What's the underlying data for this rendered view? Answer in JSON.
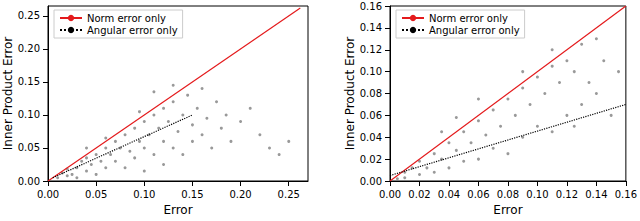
{
  "chart_data": [
    {
      "type": "scatter",
      "x_label": "Error",
      "y_label": "Inner Product Error",
      "legend": "upper left",
      "grid": false,
      "xlim": [
        0,
        0.27
      ],
      "ylim": [
        0,
        0.265
      ],
      "xticks": [
        {
          "value": 0,
          "label": "0.00"
        },
        {
          "value": 0.05,
          "label": "0.05"
        },
        {
          "value": 0.1,
          "label": "0.10"
        },
        {
          "value": 0.15,
          "label": "0.15"
        },
        {
          "value": 0.2,
          "label": "0.20"
        },
        {
          "value": 0.25,
          "label": "0.25"
        }
      ],
      "yticks": [
        {
          "value": 0,
          "label": "0.00"
        },
        {
          "value": 0.05,
          "label": "0.05"
        },
        {
          "value": 0.1,
          "label": "0.10"
        },
        {
          "value": 0.15,
          "label": "0.15"
        },
        {
          "value": 0.2,
          "label": "0.20"
        },
        {
          "value": 0.25,
          "label": "0.25"
        }
      ],
      "series": [
        {
          "type": "scatter",
          "color": "#808080",
          "marker": "circle",
          "x": [
            0.01,
            0.015,
            0.02,
            0.02,
            0.025,
            0.03,
            0.03,
            0.035,
            0.04,
            0.04,
            0.045,
            0.05,
            0.05,
            0.055,
            0.06,
            0.06,
            0.065,
            0.07,
            0.07,
            0.075,
            0.08,
            0.08,
            0.085,
            0.09,
            0.09,
            0.095,
            0.1,
            0.1,
            0.1,
            0.105,
            0.11,
            0.11,
            0.115,
            0.12,
            0.12,
            0.12,
            0.125,
            0.13,
            0.13,
            0.135,
            0.14,
            0.14,
            0.145,
            0.15,
            0.15,
            0.155,
            0.16,
            0.16,
            0.165,
            0.17,
            0.175,
            0.18,
            0.185,
            0.19,
            0.2,
            0.21,
            0.22,
            0.23,
            0.24,
            0.25,
            0.11,
            0.095,
            0.13,
            0.06,
            0.04
          ],
          "y": [
            0.005,
            0.012,
            0.008,
            0.018,
            0.01,
            0.02,
            0.005,
            0.03,
            0.015,
            0.035,
            0.025,
            0.04,
            0.01,
            0.03,
            0.05,
            0.02,
            0.04,
            0.06,
            0.03,
            0.05,
            0.07,
            0.02,
            0.045,
            0.08,
            0.035,
            0.06,
            0.09,
            0.05,
            0.015,
            0.07,
            0.1,
            0.04,
            0.08,
            0.11,
            0.06,
            0.025,
            0.09,
            0.12,
            0.05,
            0.075,
            0.1,
            0.04,
            0.13,
            0.085,
            0.06,
            0.11,
            0.07,
            0.14,
            0.095,
            0.05,
            0.12,
            0.08,
            0.1,
            0.06,
            0.09,
            0.11,
            0.07,
            0.05,
            0.04,
            0.06,
            0.135,
            0.105,
            0.145,
            0.065,
            0.05
          ]
        },
        {
          "name": "Norm error only",
          "type": "line",
          "color": "#e41a1c",
          "line_style": "solid",
          "x": [
            0,
            0.262
          ],
          "y": [
            0,
            0.262
          ]
        },
        {
          "name": "Angular error only",
          "type": "line",
          "color": "#000000",
          "line_style": "dotted",
          "x": [
            0.005,
            0.15
          ],
          "y": [
            0.005,
            0.1
          ]
        }
      ]
    },
    {
      "type": "scatter",
      "x_label": "Error",
      "y_label": "Inner Product Error",
      "legend": "upper left",
      "grid": false,
      "xlim": [
        0,
        0.16
      ],
      "ylim": [
        0,
        0.16
      ],
      "xticks": [
        {
          "value": 0,
          "label": "0.00"
        },
        {
          "value": 0.02,
          "label": "0.02"
        },
        {
          "value": 0.04,
          "label": "0.04"
        },
        {
          "value": 0.06,
          "label": "0.06"
        },
        {
          "value": 0.08,
          "label": "0.08"
        },
        {
          "value": 0.1,
          "label": "0.10"
        },
        {
          "value": 0.12,
          "label": "0.12"
        },
        {
          "value": 0.14,
          "label": "0.14"
        },
        {
          "value": 0.16,
          "label": "0.16"
        }
      ],
      "yticks": [
        {
          "value": 0,
          "label": "0.00"
        },
        {
          "value": 0.02,
          "label": "0.02"
        },
        {
          "value": 0.04,
          "label": "0.04"
        },
        {
          "value": 0.06,
          "label": "0.06"
        },
        {
          "value": 0.08,
          "label": "0.08"
        },
        {
          "value": 0.1,
          "label": "0.10"
        },
        {
          "value": 0.12,
          "label": "0.12"
        },
        {
          "value": 0.14,
          "label": "0.14"
        },
        {
          "value": 0.16,
          "label": "0.16"
        }
      ],
      "series": [
        {
          "type": "scatter",
          "color": "#808080",
          "marker": "circle",
          "x": [
            0.005,
            0.01,
            0.01,
            0.015,
            0.02,
            0.02,
            0.025,
            0.03,
            0.03,
            0.035,
            0.04,
            0.04,
            0.045,
            0.05,
            0.05,
            0.055,
            0.06,
            0.06,
            0.065,
            0.07,
            0.07,
            0.075,
            0.08,
            0.08,
            0.085,
            0.09,
            0.09,
            0.095,
            0.1,
            0.1,
            0.105,
            0.11,
            0.11,
            0.115,
            0.12,
            0.12,
            0.125,
            0.13,
            0.13,
            0.135,
            0.14,
            0.145,
            0.15,
            0.155,
            0.06,
            0.045,
            0.09,
            0.035,
            0.11,
            0.125,
            0.14
          ],
          "y": [
            0.002,
            0.008,
            0.003,
            0.012,
            0.006,
            0.018,
            0.012,
            0.025,
            0.008,
            0.02,
            0.035,
            0.012,
            0.028,
            0.045,
            0.018,
            0.035,
            0.055,
            0.02,
            0.042,
            0.065,
            0.03,
            0.05,
            0.075,
            0.025,
            0.06,
            0.085,
            0.04,
            0.07,
            0.095,
            0.05,
            0.08,
            0.105,
            0.045,
            0.09,
            0.11,
            0.06,
            0.1,
            0.125,
            0.07,
            0.09,
            0.08,
            0.11,
            0.06,
            0.1,
            0.075,
            0.058,
            0.1,
            0.045,
            0.12,
            0.05,
            0.13
          ]
        },
        {
          "name": "Norm error only",
          "type": "line",
          "color": "#e41a1c",
          "line_style": "solid",
          "x": [
            0,
            0.16
          ],
          "y": [
            0,
            0.16
          ]
        },
        {
          "name": "Angular error only",
          "type": "line",
          "color": "#000000",
          "line_style": "dotted",
          "x": [
            0,
            0.16
          ],
          "y": [
            0.005,
            0.07
          ]
        }
      ]
    }
  ]
}
